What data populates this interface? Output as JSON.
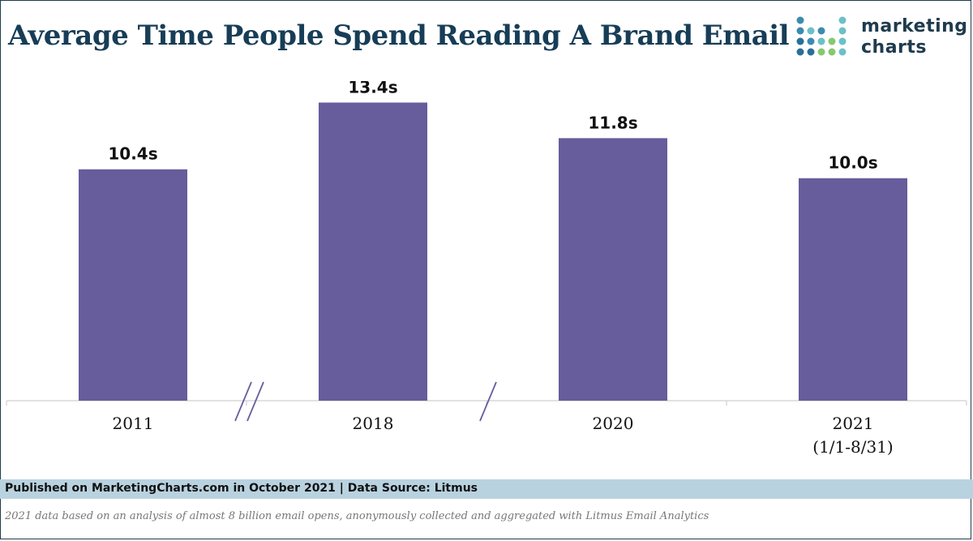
{
  "header": {
    "title": "Average Time People Spend Reading A Brand Email"
  },
  "logo": {
    "line1": "marketing",
    "line2": "charts",
    "dot_colors": [
      "#3b8bb0",
      "#6cc0c9",
      "#2a6f97",
      "#86c96e"
    ]
  },
  "chart_data": {
    "type": "bar",
    "categories": [
      "2011",
      "2018",
      "2020",
      "2021\n(1/1-8/31)"
    ],
    "values": [
      10.4,
      13.4,
      11.8,
      10.0
    ],
    "data_labels": [
      "10.4s",
      "13.4s",
      "11.8s",
      "10.0s"
    ],
    "unit": "s",
    "title": "Average Time People Spend Reading A Brand Email",
    "xlabel": "",
    "ylabel": "",
    "ylim": [
      0,
      14
    ],
    "grid": false,
    "axis_breaks": [
      "between 2011 and 2018",
      "between 2018 and 2020"
    ],
    "bar_color": "#675c9c"
  },
  "footer": {
    "published": "Published on MarketingCharts.com in October 2021 | Data Source: Litmus",
    "note": "2021 data based on an analysis of almost 8 billion email opens, anonymously collected and aggregated with Litmus Email Analytics"
  }
}
